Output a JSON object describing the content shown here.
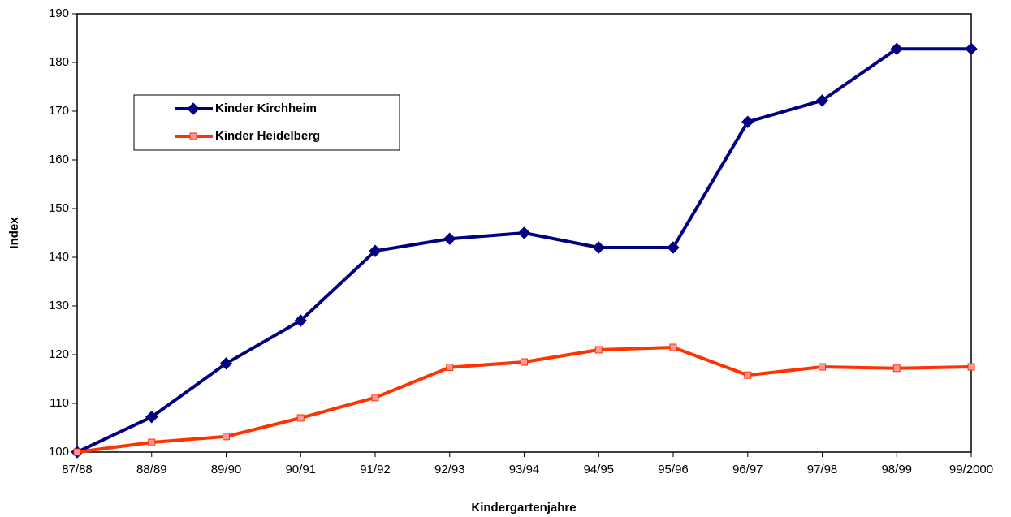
{
  "chart_data": {
    "type": "line",
    "x_label": "Kindergartenjahre",
    "y_label": "Index",
    "categories": [
      "87/88",
      "88/89",
      "89/90",
      "90/91",
      "91/92",
      "92/93",
      "93/94",
      "94/95",
      "95/96",
      "96/97",
      "97/98",
      "98/99",
      "99/2000"
    ],
    "series": [
      {
        "name": "Kinder Kirchheim",
        "color": "#000080",
        "marker": "diamond",
        "marker_fill": "#000080",
        "values": [
          100,
          107.2,
          118.2,
          127,
          141.3,
          143.8,
          145,
          142,
          142,
          167.8,
          172.2,
          182.8,
          182.8
        ]
      },
      {
        "name": "Kinder Heidelberg",
        "color": "#ff3300",
        "marker": "square",
        "marker_fill": "#ff9999",
        "values": [
          100,
          102,
          103.2,
          107,
          111.2,
          117.4,
          118.5,
          121,
          121.5,
          115.8,
          117.5,
          117.2,
          117.5
        ]
      }
    ],
    "ylim": [
      100,
      190
    ],
    "yticks": [
      100,
      110,
      120,
      130,
      140,
      150,
      160,
      170,
      180,
      190
    ],
    "grid": false,
    "legend": "upper left"
  }
}
